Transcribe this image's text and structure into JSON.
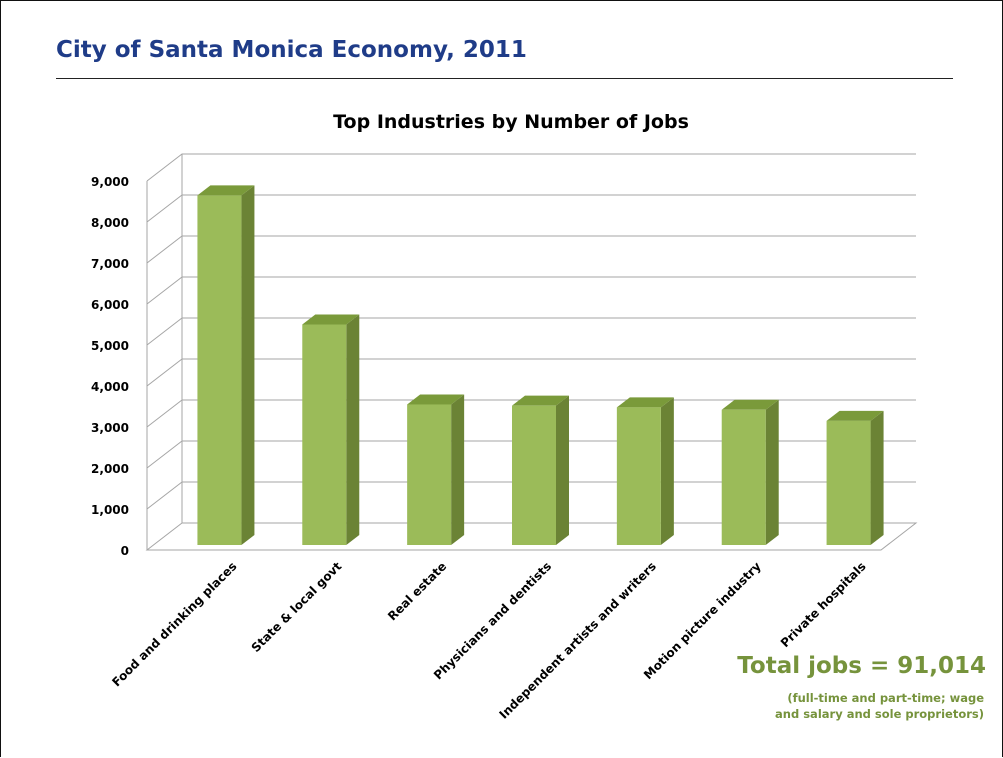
{
  "slide": {
    "title": "City of Santa Monica Economy, 2011"
  },
  "chart_data": {
    "type": "bar",
    "title": "Top Industries by Number of Jobs",
    "xlabel": "",
    "ylabel": "",
    "categories": [
      "Food and drinking places",
      "State & local govt",
      "Real estate",
      "Physicians and dentists",
      "Independent artists and writers",
      "Motion picture industry",
      "Private hospitals"
    ],
    "values": [
      8650,
      5500,
      3550,
      3520,
      3480,
      3420,
      3150
    ],
    "ylim": [
      0,
      9000
    ],
    "yticks": [
      0,
      1000,
      2000,
      3000,
      4000,
      5000,
      6000,
      7000,
      8000,
      9000
    ],
    "ytick_labels": [
      "0",
      "1,000",
      "2,000",
      "3,000",
      "4,000",
      "5,000",
      "6,000",
      "7,000",
      "8,000",
      "9,000"
    ],
    "grid": true,
    "style": "3d-column",
    "colors": {
      "bar_front": "#9bbb59",
      "bar_side": "#6b8335",
      "bar_top": "#7a9a3a",
      "grid": "#a6a6a6"
    }
  },
  "summary": {
    "total": "Total jobs = 91,014",
    "note_line1": "(full-time and part-time; wage",
    "note_line2": "and salary and sole proprietors)",
    "color": "#76933c"
  }
}
